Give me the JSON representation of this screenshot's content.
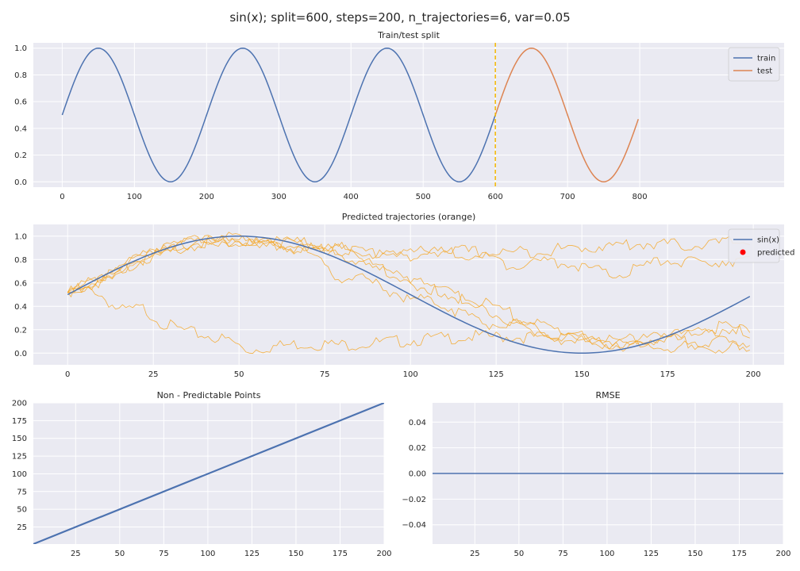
{
  "figure": {
    "suptitle": "sin(x); split=600, steps=200, n_trajectories=6, var=0.05"
  },
  "chart_data": [
    {
      "type": "line",
      "title": "Train/test split",
      "xlim": [
        -40,
        1000
      ],
      "ylim": [
        -0.04,
        1.04
      ],
      "xticks": [
        "0",
        "100",
        "200",
        "300",
        "400",
        "500",
        "600",
        "700",
        "800"
      ],
      "yticks": [
        "0.0",
        "0.2",
        "0.4",
        "0.6",
        "0.8",
        "1.0"
      ],
      "grid": true,
      "legend": "top-right",
      "function": "0.5 + 0.5*sin(2*pi*x/200)",
      "series": [
        {
          "name": "train",
          "x_range": [
            0,
            600
          ],
          "color": "#4c72b0"
        },
        {
          "name": "test",
          "x_range": [
            600,
            799
          ],
          "color": "#dd8452"
        }
      ],
      "split_line": {
        "x": 600,
        "color": "#f5b800",
        "style": "dashed"
      }
    },
    {
      "type": "line",
      "title": "Predicted trajectories (orange)",
      "xlim": [
        -10,
        209
      ],
      "ylim": [
        -0.1,
        1.1
      ],
      "xticks": [
        "0",
        "25",
        "50",
        "75",
        "100",
        "125",
        "150",
        "175",
        "200"
      ],
      "yticks": [
        "0.0",
        "0.2",
        "0.4",
        "0.6",
        "0.8",
        "1.0"
      ],
      "grid": true,
      "legend": "top-right",
      "series": [
        {
          "name": "sin(x)",
          "function": "0.5 + 0.5*sin(2*pi*x/200)",
          "x_range": [
            0,
            199
          ],
          "color": "#4c72b0"
        },
        {
          "name": "predicted",
          "marker": "dot",
          "color": "#ff0000"
        }
      ],
      "trajectory_color": "#f5a623",
      "trajectories": [
        {
          "points": [
            [
              0,
              0.52
            ],
            [
              8,
              0.54
            ],
            [
              15,
              0.36
            ],
            [
              22,
              0.38
            ],
            [
              28,
              0.25
            ],
            [
              35,
              0.18
            ],
            [
              42,
              0.14
            ],
            [
              48,
              0.1
            ],
            [
              52,
              0.02
            ],
            [
              58,
              0.05
            ],
            [
              68,
              0.08
            ],
            [
              80,
              0.07
            ],
            [
              92,
              0.09
            ],
            [
              105,
              0.12
            ],
            [
              118,
              0.14
            ],
            [
              130,
              0.14
            ],
            [
              142,
              0.13
            ],
            [
              150,
              0.1
            ],
            [
              160,
              0.07
            ],
            [
              172,
              0.05
            ],
            [
              185,
              0.05
            ],
            [
              199,
              0.04
            ]
          ]
        },
        {
          "points": [
            [
              0,
              0.52
            ],
            [
              10,
              0.62
            ],
            [
              20,
              0.78
            ],
            [
              30,
              0.9
            ],
            [
              40,
              0.96
            ],
            [
              50,
              0.96
            ],
            [
              60,
              0.92
            ],
            [
              70,
              0.9
            ],
            [
              80,
              0.88
            ],
            [
              90,
              0.86
            ],
            [
              100,
              0.86
            ],
            [
              110,
              0.88
            ],
            [
              120,
              0.86
            ],
            [
              130,
              0.86
            ],
            [
              140,
              0.88
            ],
            [
              150,
              0.9
            ],
            [
              160,
              0.92
            ],
            [
              170,
              0.94
            ],
            [
              180,
              0.92
            ],
            [
              190,
              0.94
            ],
            [
              199,
              0.96
            ]
          ]
        },
        {
          "points": [
            [
              0,
              0.52
            ],
            [
              10,
              0.64
            ],
            [
              20,
              0.8
            ],
            [
              30,
              0.92
            ],
            [
              40,
              0.98
            ],
            [
              50,
              0.98
            ],
            [
              60,
              0.95
            ],
            [
              70,
              0.92
            ],
            [
              80,
              0.88
            ],
            [
              90,
              0.84
            ],
            [
              100,
              0.84
            ],
            [
              110,
              0.86
            ],
            [
              120,
              0.84
            ],
            [
              128,
              0.76
            ],
            [
              136,
              0.78
            ],
            [
              145,
              0.78
            ],
            [
              152,
              0.72
            ],
            [
              160,
              0.66
            ],
            [
              168,
              0.74
            ],
            [
              175,
              0.8
            ],
            [
              184,
              0.76
            ],
            [
              192,
              0.8
            ],
            [
              199,
              0.78
            ]
          ]
        },
        {
          "points": [
            [
              0,
              0.52
            ],
            [
              10,
              0.62
            ],
            [
              20,
              0.78
            ],
            [
              30,
              0.88
            ],
            [
              40,
              0.94
            ],
            [
              50,
              0.95
            ],
            [
              60,
              0.92
            ],
            [
              70,
              0.86
            ],
            [
              78,
              0.66
            ],
            [
              85,
              0.64
            ],
            [
              92,
              0.56
            ],
            [
              100,
              0.46
            ],
            [
              108,
              0.44
            ],
            [
              115,
              0.34
            ],
            [
              122,
              0.26
            ],
            [
              130,
              0.22
            ],
            [
              138,
              0.16
            ],
            [
              145,
              0.12
            ],
            [
              152,
              0.14
            ],
            [
              160,
              0.1
            ],
            [
              168,
              0.12
            ],
            [
              176,
              0.12
            ],
            [
              184,
              0.08
            ],
            [
              192,
              0.1
            ],
            [
              199,
              0.04
            ]
          ]
        },
        {
          "points": [
            [
              0,
              0.52
            ],
            [
              10,
              0.64
            ],
            [
              20,
              0.8
            ],
            [
              30,
              0.92
            ],
            [
              40,
              0.96
            ],
            [
              50,
              0.96
            ],
            [
              60,
              0.95
            ],
            [
              70,
              0.94
            ],
            [
              80,
              0.9
            ],
            [
              88,
              0.78
            ],
            [
              95,
              0.68
            ],
            [
              102,
              0.58
            ],
            [
              110,
              0.52
            ],
            [
              118,
              0.44
            ],
            [
              125,
              0.4
            ],
            [
              132,
              0.3
            ],
            [
              140,
              0.22
            ],
            [
              148,
              0.16
            ],
            [
              155,
              0.08
            ],
            [
              162,
              0.1
            ],
            [
              170,
              0.12
            ],
            [
              178,
              0.18
            ],
            [
              186,
              0.16
            ],
            [
              192,
              0.22
            ],
            [
              199,
              0.17
            ]
          ]
        },
        {
          "points": [
            [
              0,
              0.52
            ],
            [
              10,
              0.63
            ],
            [
              20,
              0.79
            ],
            [
              30,
              0.9
            ],
            [
              40,
              0.95
            ],
            [
              50,
              0.96
            ],
            [
              60,
              0.94
            ],
            [
              70,
              0.9
            ],
            [
              80,
              0.84
            ],
            [
              90,
              0.74
            ],
            [
              100,
              0.62
            ],
            [
              106,
              0.56
            ],
            [
              112,
              0.5
            ],
            [
              118,
              0.42
            ],
            [
              124,
              0.34
            ],
            [
              130,
              0.26
            ],
            [
              138,
              0.2
            ],
            [
              146,
              0.12
            ],
            [
              154,
              0.1
            ],
            [
              162,
              0.06
            ],
            [
              170,
              0.1
            ],
            [
              178,
              0.16
            ],
            [
              186,
              0.2
            ],
            [
              192,
              0.24
            ],
            [
              199,
              0.17
            ]
          ]
        }
      ]
    },
    {
      "type": "line",
      "title": "Non - Predictable Points",
      "xlim": [
        1,
        200
      ],
      "ylim": [
        1,
        200
      ],
      "xticks": [
        "25",
        "50",
        "75",
        "100",
        "125",
        "150",
        "175",
        "200"
      ],
      "yticks": [
        "25",
        "50",
        "75",
        "100",
        "125",
        "150",
        "175",
        "200"
      ],
      "grid": true,
      "series": [
        {
          "x": [
            1,
            200
          ],
          "y": [
            1,
            200
          ],
          "color": "#4c72b0"
        }
      ]
    },
    {
      "type": "line",
      "title": "RMSE",
      "xlim": [
        1,
        200
      ],
      "ylim": [
        -0.055,
        0.055
      ],
      "xticks": [
        "25",
        "50",
        "75",
        "100",
        "125",
        "150",
        "175",
        "200"
      ],
      "yticks": [
        "−0.04",
        "−0.02",
        "0.00",
        "0.02",
        "0.04"
      ],
      "grid": true,
      "series": [
        {
          "x": [
            1,
            200
          ],
          "y": [
            0,
            0
          ],
          "color": "#4c72b0"
        }
      ]
    }
  ]
}
